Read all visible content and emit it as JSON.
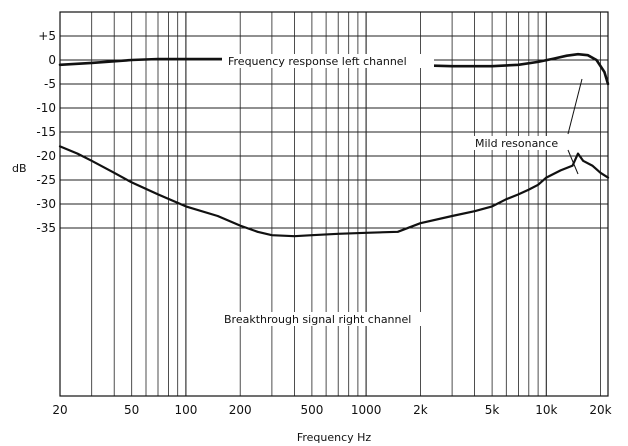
{
  "chart_data": {
    "type": "line",
    "title": "",
    "xlabel": "Frequency Hz",
    "ylabel": "dB",
    "xscale": "log",
    "xlim": [
      20,
      22000
    ],
    "ylim": [
      -70,
      10
    ],
    "grid": true,
    "x_ticks": [
      {
        "value": 20,
        "label": "20"
      },
      {
        "value": 50,
        "label": "50"
      },
      {
        "value": 100,
        "label": "100"
      },
      {
        "value": 200,
        "label": "200"
      },
      {
        "value": 500,
        "label": "500"
      },
      {
        "value": 1000,
        "label": "1000"
      },
      {
        "value": 2000,
        "label": "2k"
      },
      {
        "value": 5000,
        "label": "5k"
      },
      {
        "value": 10000,
        "label": "10k"
      },
      {
        "value": 20000,
        "label": "20k"
      }
    ],
    "y_ticks": [
      {
        "value": 5,
        "label": "+5"
      },
      {
        "value": 0,
        "label": "0"
      },
      {
        "value": -5,
        "label": "-5"
      },
      {
        "value": -10,
        "label": "-10"
      },
      {
        "value": -15,
        "label": "-15"
      },
      {
        "value": -20,
        "label": "-20"
      },
      {
        "value": -25,
        "label": "-25"
      },
      {
        "value": -30,
        "label": "-30"
      },
      {
        "value": -35,
        "label": "-35"
      }
    ],
    "series": [
      {
        "name": "Frequency response left channel",
        "x": [
          20,
          30,
          50,
          70,
          100,
          200,
          500,
          1000,
          1500,
          2000,
          3000,
          5000,
          7000,
          9000,
          11000,
          13000,
          15000,
          17000,
          19000,
          21000,
          22000
        ],
        "y": [
          -1.0,
          -0.6,
          0.0,
          0.2,
          0.2,
          0.2,
          0.2,
          -0.5,
          -0.9,
          -1.1,
          -1.3,
          -1.3,
          -1.0,
          -0.4,
          0.3,
          0.9,
          1.2,
          1.0,
          0.0,
          -2.5,
          -5.0
        ]
      },
      {
        "name": "Breakthrough signal right channel",
        "x": [
          20,
          25,
          30,
          40,
          50,
          70,
          100,
          150,
          200,
          250,
          300,
          400,
          500,
          700,
          1000,
          1500,
          2000,
          3000,
          4000,
          5000,
          6000,
          7000,
          8000,
          9000,
          10000,
          12000,
          14000,
          15000,
          16000,
          18000,
          20000,
          22000
        ],
        "y": [
          -18.0,
          -19.5,
          -21.0,
          -23.5,
          -25.5,
          -28.0,
          -30.5,
          -32.5,
          -34.5,
          -35.8,
          -36.5,
          -36.7,
          -36.5,
          -36.2,
          -36.0,
          -35.8,
          -34.0,
          -32.5,
          -31.5,
          -30.5,
          -29.0,
          -28.0,
          -27.0,
          -26.0,
          -24.5,
          -23.0,
          -22.0,
          -19.5,
          -21.0,
          -22.0,
          -23.5,
          -24.5
        ]
      }
    ],
    "annotations": [
      {
        "text": "Frequency response left channel"
      },
      {
        "text": "Mild resonance"
      },
      {
        "text": "Breakthrough signal right channel"
      }
    ]
  }
}
